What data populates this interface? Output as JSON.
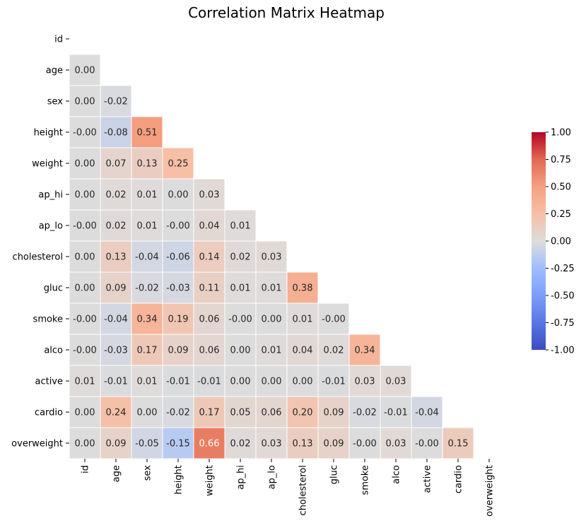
{
  "chart_data": {
    "type": "heatmap",
    "title": "Correlation Matrix Heatmap",
    "variables": [
      "id",
      "age",
      "sex",
      "height",
      "weight",
      "ap_hi",
      "ap_lo",
      "cholesterol",
      "gluc",
      "smoke",
      "alco",
      "active",
      "cardio",
      "overweight"
    ],
    "mask": "upper-triangle-including-diagonal",
    "rows": [
      [],
      [
        "0.00"
      ],
      [
        "0.00",
        "-0.02"
      ],
      [
        "-0.00",
        "-0.08",
        "0.51"
      ],
      [
        "0.00",
        "0.07",
        "0.13",
        "0.25"
      ],
      [
        "0.00",
        "0.02",
        "0.01",
        "0.00",
        "0.03"
      ],
      [
        "-0.00",
        "0.02",
        "0.01",
        "-0.00",
        "0.04",
        "0.01"
      ],
      [
        "0.00",
        "0.13",
        "-0.04",
        "-0.06",
        "0.14",
        "0.02",
        "0.03"
      ],
      [
        "0.00",
        "0.09",
        "-0.02",
        "-0.03",
        "0.11",
        "0.01",
        "0.01",
        "0.38"
      ],
      [
        "-0.00",
        "-0.04",
        "0.34",
        "0.19",
        "0.06",
        "-0.00",
        "0.00",
        "0.01",
        "-0.00"
      ],
      [
        "-0.00",
        "-0.03",
        "0.17",
        "0.09",
        "0.06",
        "0.00",
        "0.01",
        "0.04",
        "0.02",
        "0.34"
      ],
      [
        "0.01",
        "-0.01",
        "0.01",
        "-0.01",
        "-0.01",
        "0.00",
        "0.00",
        "0.00",
        "-0.01",
        "0.03",
        "0.03"
      ],
      [
        "0.00",
        "0.24",
        "0.00",
        "-0.02",
        "0.17",
        "0.05",
        "0.06",
        "0.20",
        "0.09",
        "-0.02",
        "-0.01",
        "-0.04"
      ],
      [
        "0.00",
        "0.09",
        "-0.05",
        "-0.15",
        "0.66",
        "0.02",
        "0.03",
        "0.13",
        "0.09",
        "-0.00",
        "0.03",
        "-0.00",
        "0.15"
      ]
    ],
    "colorbar": {
      "cmap": "coolwarm",
      "vmin": -1.0,
      "vmax": 1.0,
      "ticks": [
        "-1.00",
        "-0.75",
        "-0.50",
        "-0.25",
        "0.00",
        "0.25",
        "0.50",
        "0.75",
        "1.00"
      ]
    },
    "grid_lines": "white"
  }
}
